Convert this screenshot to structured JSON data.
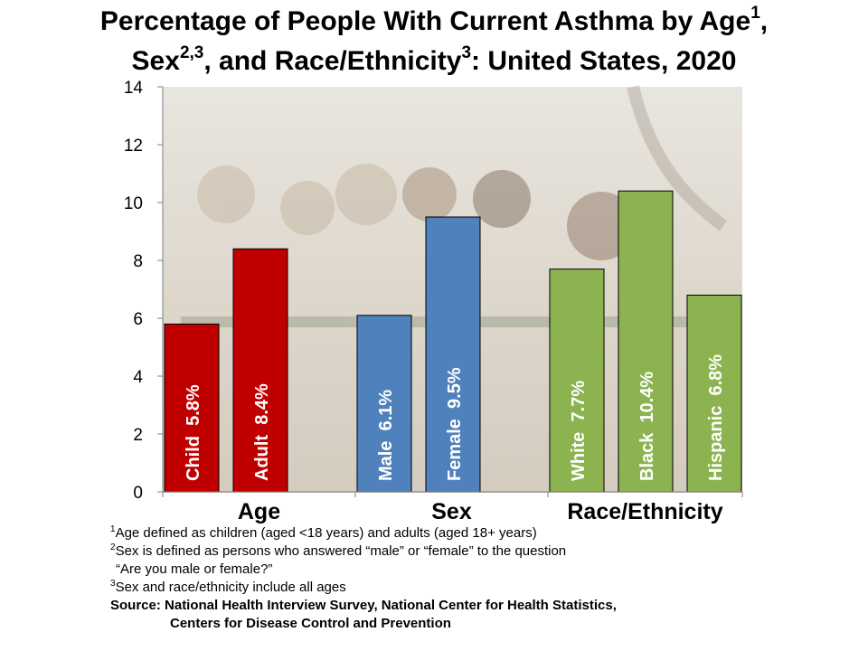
{
  "title": {
    "part1": "Percentage of People With Current Asthma by Age",
    "sup1": "1",
    "part2": ",",
    "part3": "Sex",
    "sup2": "2,3",
    "part4": ", and Race/Ethnicity",
    "sup3": "3",
    "part5": ": United States, 2020"
  },
  "chart_data": {
    "type": "bar",
    "title": "Percentage of People With Current Asthma by Age, Sex, and Race/Ethnicity: United States, 2020",
    "ylim": [
      0,
      14
    ],
    "yticks": [
      "0",
      "2",
      "4",
      "6",
      "8",
      "10",
      "12",
      "14"
    ],
    "grid": false,
    "groups": [
      {
        "label": "Age",
        "bars": [
          {
            "category": "Child",
            "value": 5.8,
            "label": "Child  5.8%"
          },
          {
            "category": "Adult",
            "value": 8.4,
            "label": "Adult  8.4%"
          }
        ]
      },
      {
        "label": "Sex",
        "bars": [
          {
            "category": "Male",
            "value": 6.1,
            "label": "Male  6.1%"
          },
          {
            "category": "Female",
            "value": 9.5,
            "label": "Female  9.5%"
          }
        ]
      },
      {
        "label": "Race/Ethnicity",
        "bars": [
          {
            "category": "White",
            "value": 7.7,
            "label": "White  7.7%"
          },
          {
            "category": "Black",
            "value": 10.4,
            "label": "Black  10.4%"
          },
          {
            "category": "Hispanic",
            "value": 6.8,
            "label": "Hispanic  6.8%"
          }
        ]
      }
    ]
  },
  "colors": {
    "age": "#c00000",
    "sex": "#4f81bd",
    "race": "#8db351",
    "bar_outline": "#000000",
    "photo_backdrop": "#d8d2c8"
  },
  "footnotes": {
    "fn1_sup": "1",
    "fn1": "Age defined as children (aged <18 years) and adults (aged 18+ years)",
    "fn2_sup": "2",
    "fn2": "Sex is defined as persons who answered “male” or “female” to the question",
    "fn2b": "“Are you male or female?”",
    "fn3_sup": "3",
    "fn3": "Sex and race/ethnicity include all ages",
    "source1": "Source: National Health Interview Survey, National Center for Health Statistics,",
    "source2": "Centers for Disease Control and Prevention"
  }
}
